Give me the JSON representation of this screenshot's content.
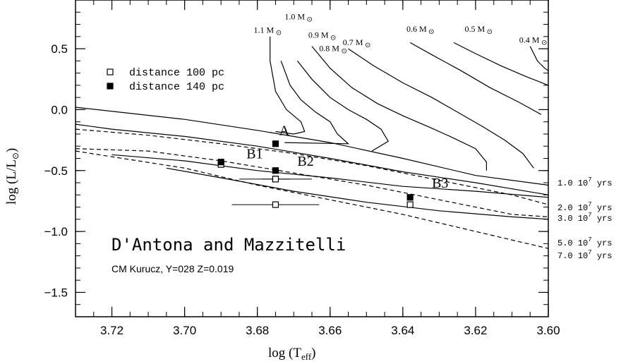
{
  "chart_data": {
    "type": "scatter",
    "title": "D'Antona and Mazzitelli",
    "subtitle": "CM Kurucz, Y=028 Z=0.019",
    "xlabel": "log (T",
    "xlabel_sub": "eff",
    "xlabel_close": ")",
    "ylabel": "log (L/L",
    "ylabel_sun": "⊙",
    "ylabel_close": ")",
    "xlim": [
      3.73,
      3.6
    ],
    "ylim": [
      -1.7,
      0.9
    ],
    "x_ticks": [
      3.72,
      3.7,
      3.68,
      3.66,
      3.64,
      3.62,
      3.6
    ],
    "x_tick_labels": [
      "3.72",
      "3.70",
      "3.68",
      "3.66",
      "3.64",
      "3.62",
      "3.60"
    ],
    "y_ticks": [
      0.5,
      0.0,
      -0.5,
      -1.0,
      -1.5
    ],
    "y_tick_labels": [
      "0.5",
      "0.0",
      "−0.5",
      "−1.0",
      "−1.5"
    ],
    "grid": false,
    "legend": {
      "placement": "top-left",
      "entries": [
        {
          "label": "distance 100 pc",
          "marker": "open-square"
        },
        {
          "label": "distance 140 pc",
          "marker": "filled-square"
        }
      ]
    },
    "stars": [
      {
        "name": "A",
        "x": 3.675,
        "y_100": -0.57,
        "y_140": -0.28,
        "xerr": 0.004,
        "label_at": [
          3.674,
          -0.21
        ]
      },
      {
        "name": "B1",
        "x": 3.69,
        "y_100": -0.45,
        "y_140": -0.43,
        "xerr": 0.0,
        "label_at": [
          3.683,
          -0.4
        ]
      },
      {
        "name": "B2",
        "x": 3.675,
        "y_100": -0.57,
        "y_140": -0.5,
        "xerr": 0.01,
        "label_at": [
          3.669,
          -0.46
        ]
      },
      {
        "name": "B3",
        "x": 3.638,
        "y_100": -0.78,
        "y_140": -0.72,
        "xerr": 0.0,
        "label_at": [
          3.632,
          -0.64
        ]
      },
      {
        "name": "",
        "x": 3.675,
        "y_100": -0.78,
        "y_140": null,
        "xerr": 0.012,
        "label_at": null
      }
    ],
    "mass_tracks": [
      {
        "label": "1.1 M",
        "points": [
          [
            3.6765,
            0.6
          ],
          [
            3.6765,
            0.4
          ],
          [
            3.675,
            0.15
          ],
          [
            3.672,
            0.0
          ],
          [
            3.668,
            -0.1
          ],
          [
            3.667,
            -0.18
          ],
          [
            3.67,
            -0.2
          ],
          [
            3.675,
            -0.18
          ]
        ]
      },
      {
        "label": "1.0 M",
        "points": [
          [
            3.6735,
            0.4
          ],
          [
            3.671,
            0.2
          ],
          [
            3.668,
            0.08
          ],
          [
            3.664,
            -0.02
          ],
          [
            3.66,
            -0.1
          ],
          [
            3.658,
            -0.2
          ],
          [
            3.655,
            -0.28
          ],
          [
            3.6725,
            -0.27
          ]
        ]
      },
      {
        "label": "0.9 M",
        "points": [
          [
            3.669,
            0.4
          ],
          [
            3.665,
            0.25
          ],
          [
            3.66,
            0.1
          ],
          [
            3.655,
            0.0
          ],
          [
            3.65,
            -0.08
          ],
          [
            3.646,
            -0.16
          ],
          [
            3.644,
            -0.26
          ],
          [
            3.6485,
            -0.34
          ]
        ]
      },
      {
        "label": "0.8 M",
        "points": [
          [
            3.665,
            0.52
          ],
          [
            3.66,
            0.34
          ],
          [
            3.654,
            0.18
          ],
          [
            3.647,
            0.05
          ],
          [
            3.64,
            -0.05
          ],
          [
            3.633,
            -0.14
          ],
          [
            3.627,
            -0.22
          ],
          [
            3.62,
            -0.32
          ],
          [
            3.617,
            -0.43
          ],
          [
            3.617,
            -0.5
          ]
        ]
      },
      {
        "label": "0.7 M",
        "points": [
          [
            3.655,
            0.5
          ],
          [
            3.648,
            0.36
          ],
          [
            3.64,
            0.22
          ],
          [
            3.632,
            0.1
          ],
          [
            3.625,
            -0.02
          ],
          [
            3.618,
            -0.14
          ],
          [
            3.612,
            -0.25
          ],
          [
            3.607,
            -0.36
          ],
          [
            3.604,
            -0.48
          ]
        ]
      },
      {
        "label": "0.6 M",
        "points": [
          [
            3.638,
            0.55
          ],
          [
            3.632,
            0.45
          ],
          [
            3.624,
            0.32
          ],
          [
            3.616,
            0.18
          ],
          [
            3.608,
            0.06
          ],
          [
            3.602,
            -0.04
          ]
        ]
      },
      {
        "label": "0.5 M",
        "points": [
          [
            3.626,
            0.55
          ],
          [
            3.62,
            0.46
          ],
          [
            3.613,
            0.36
          ],
          [
            3.606,
            0.27
          ],
          [
            3.6,
            0.2
          ]
        ]
      },
      {
        "label": "0.4 M",
        "points": [
          [
            3.605,
            0.52
          ],
          [
            3.603,
            0.4
          ],
          [
            3.601,
            0.34
          ],
          [
            3.6,
            0.32
          ]
        ]
      }
    ],
    "isochrones": [
      {
        "label": "1.0 10",
        "exp": "7",
        "unit": "yrs",
        "style": "solid",
        "points": [
          [
            3.73,
            0.02
          ],
          [
            3.7,
            -0.08
          ],
          [
            3.68,
            -0.17
          ],
          [
            3.66,
            -0.27
          ],
          [
            3.64,
            -0.4
          ],
          [
            3.62,
            -0.54
          ],
          [
            3.6,
            -0.62
          ]
        ]
      },
      {
        "label": "2.0 10",
        "exp": "7",
        "unit": "yrs",
        "style": "dashed",
        "points": [
          [
            3.73,
            -0.16
          ],
          [
            3.71,
            -0.21
          ],
          [
            3.69,
            -0.28
          ],
          [
            3.67,
            -0.36
          ],
          [
            3.65,
            -0.46
          ],
          [
            3.63,
            -0.58
          ],
          [
            3.61,
            -0.7
          ],
          [
            3.6,
            -0.78
          ]
        ]
      },
      {
        "label": "3.0 10",
        "exp": "7",
        "unit": "yrs",
        "style": "solid",
        "points": [
          [
            3.73,
            -0.12
          ],
          [
            3.72,
            -0.16
          ],
          [
            3.7,
            -0.22
          ],
          [
            3.68,
            -0.3
          ],
          [
            3.66,
            -0.4
          ],
          [
            3.64,
            -0.51
          ],
          [
            3.62,
            -0.6
          ],
          [
            3.6,
            -0.7
          ]
        ]
      },
      {
        "label": "5.0 10",
        "exp": "7",
        "unit": "yrs",
        "style": "dashed",
        "points": [
          [
            3.73,
            -0.32
          ],
          [
            3.71,
            -0.34
          ],
          [
            3.69,
            -0.42
          ],
          [
            3.67,
            -0.52
          ],
          [
            3.65,
            -0.62
          ],
          [
            3.63,
            -0.74
          ],
          [
            3.61,
            -0.86
          ],
          [
            3.6,
            -0.88
          ]
        ]
      },
      {
        "label": "7.0 10",
        "exp": "7",
        "unit": "yrs",
        "style": "dashed",
        "points": [
          [
            3.73,
            -0.34
          ],
          [
            3.7,
            -0.48
          ],
          [
            3.68,
            -0.62
          ],
          [
            3.66,
            -0.74
          ],
          [
            3.64,
            -0.86
          ],
          [
            3.62,
            -1.0
          ],
          [
            3.6,
            -1.14
          ]
        ]
      },
      {
        "label": "",
        "exp": "",
        "unit": "",
        "style": "solid",
        "points": [
          [
            3.72,
            -0.37
          ],
          [
            3.7,
            -0.42
          ],
          [
            3.68,
            -0.5
          ],
          [
            3.66,
            -0.56
          ],
          [
            3.64,
            -0.63
          ],
          [
            3.62,
            -0.67
          ],
          [
            3.6,
            -0.72
          ]
        ]
      },
      {
        "label": "",
        "exp": "",
        "unit": "",
        "style": "solid",
        "points": [
          [
            3.705,
            -0.48
          ],
          [
            3.69,
            -0.56
          ],
          [
            3.67,
            -0.67
          ],
          [
            3.65,
            -0.76
          ],
          [
            3.63,
            -0.83
          ],
          [
            3.61,
            -0.88
          ],
          [
            3.6,
            -0.9
          ]
        ]
      }
    ],
    "mass_label_positions": [
      {
        "label": "1.0 M",
        "at": [
          3.6725,
          0.74
        ]
      },
      {
        "label": "1.1 M",
        "at": [
          3.681,
          0.63
        ]
      },
      {
        "label": "0.9 M",
        "at": [
          3.666,
          0.59
        ]
      },
      {
        "label": "0.8 M",
        "at": [
          3.663,
          0.48
        ]
      },
      {
        "label": "0.7 M",
        "at": [
          3.6565,
          0.53
        ]
      },
      {
        "label": "0.6 M",
        "at": [
          3.639,
          0.64
        ]
      },
      {
        "label": "0.5 M",
        "at": [
          3.623,
          0.64
        ]
      },
      {
        "label": "0.4 M",
        "at": [
          3.608,
          0.55
        ]
      }
    ]
  }
}
